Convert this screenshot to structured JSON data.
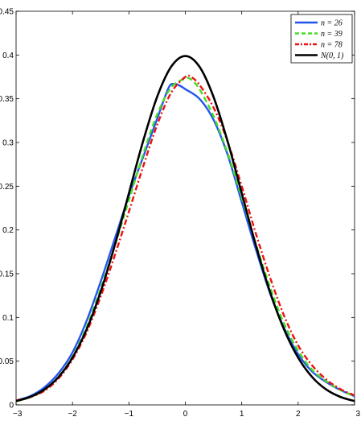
{
  "chart_data": {
    "type": "line",
    "title": "",
    "xlabel": "",
    "ylabel": "",
    "xlim": [
      -3,
      3
    ],
    "ylim": [
      0,
      0.45
    ],
    "xticks": [
      -3,
      -2,
      -1,
      0,
      1,
      2,
      3
    ],
    "xtick_labels": [
      "−3",
      "−2",
      "−1",
      "0",
      "1",
      "2",
      "3"
    ],
    "yticks": [
      0,
      0.05,
      0.1,
      0.15,
      0.2,
      0.25,
      0.3,
      0.35,
      0.4,
      0.45
    ],
    "ytick_labels": [
      "0",
      "0.05",
      "0.1",
      "0.15",
      "0.2",
      "0.25",
      "0.3",
      "0.35",
      "0.4",
      "0.45"
    ],
    "grid": false,
    "legend_position": "top-right",
    "series": [
      {
        "name": "n = 26",
        "color": "#2255ee",
        "style": "solid",
        "x": [
          -3,
          -2.75,
          -2.5,
          -2.25,
          -2,
          -1.75,
          -1.5,
          -1.25,
          -1,
          -0.75,
          -0.5,
          -0.3,
          -0.2,
          -0.1,
          0,
          0.25,
          0.5,
          0.75,
          1,
          1.25,
          1.5,
          1.75,
          2,
          2.25,
          2.5,
          2.75,
          3
        ],
        "y": [
          0.005,
          0.01,
          0.02,
          0.036,
          0.06,
          0.096,
          0.141,
          0.19,
          0.239,
          0.283,
          0.327,
          0.362,
          0.367,
          0.365,
          0.361,
          0.35,
          0.326,
          0.286,
          0.232,
          0.178,
          0.128,
          0.088,
          0.058,
          0.038,
          0.026,
          0.017,
          0.01
        ]
      },
      {
        "name": "n = 39",
        "color": "#44dd22",
        "style": "dashed",
        "x": [
          -3,
          -2.75,
          -2.5,
          -2.25,
          -2,
          -1.75,
          -1.5,
          -1.25,
          -1,
          -0.75,
          -0.5,
          -0.25,
          0,
          0.1,
          0.25,
          0.5,
          0.75,
          1,
          1.25,
          1.5,
          1.75,
          2,
          2.25,
          2.5,
          2.75,
          3
        ],
        "y": [
          0.004,
          0.009,
          0.017,
          0.032,
          0.055,
          0.089,
          0.133,
          0.182,
          0.234,
          0.286,
          0.332,
          0.363,
          0.373,
          0.372,
          0.361,
          0.33,
          0.288,
          0.237,
          0.184,
          0.135,
          0.093,
          0.062,
          0.04,
          0.027,
          0.017,
          0.01
        ]
      },
      {
        "name": "n = 78",
        "color": "#ee1111",
        "style": "dashdot",
        "x": [
          -3,
          -2.75,
          -2.5,
          -2.25,
          -2,
          -1.75,
          -1.5,
          -1.25,
          -1,
          -0.75,
          -0.5,
          -0.25,
          0,
          0.1,
          0.25,
          0.5,
          0.75,
          1,
          1.25,
          1.5,
          1.75,
          2,
          2.25,
          2.5,
          2.75,
          3
        ],
        "y": [
          0.005,
          0.009,
          0.016,
          0.03,
          0.052,
          0.083,
          0.124,
          0.171,
          0.221,
          0.272,
          0.32,
          0.357,
          0.375,
          0.375,
          0.366,
          0.34,
          0.301,
          0.25,
          0.196,
          0.146,
          0.102,
          0.068,
          0.045,
          0.029,
          0.018,
          0.011
        ]
      },
      {
        "name": "N(0, 1)",
        "color": "#000000",
        "style": "solid",
        "x": [
          -3,
          -2.75,
          -2.5,
          -2.25,
          -2,
          -1.75,
          -1.5,
          -1.25,
          -1,
          -0.75,
          -0.5,
          -0.25,
          0,
          0.25,
          0.5,
          0.75,
          1,
          1.25,
          1.5,
          1.75,
          2,
          2.25,
          2.5,
          2.75,
          3
        ],
        "y": [
          0.0044,
          0.0091,
          0.0175,
          0.0317,
          0.054,
          0.0863,
          0.1295,
          0.1826,
          0.242,
          0.3011,
          0.3521,
          0.3867,
          0.3989,
          0.3867,
          0.3521,
          0.3011,
          0.242,
          0.1826,
          0.1295,
          0.0863,
          0.054,
          0.0317,
          0.0175,
          0.0091,
          0.0044
        ]
      }
    ]
  }
}
